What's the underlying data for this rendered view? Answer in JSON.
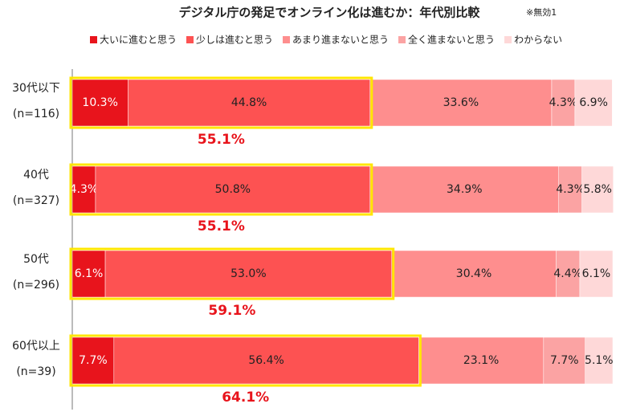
{
  "chart_data": {
    "type": "stacked_bar_horizontal",
    "title": "デジタル庁の発足でオンライン化は進むか：年代別比較",
    "note": "※無効1",
    "categories": [
      "30代以下",
      "40代",
      "50代",
      "60代以上"
    ],
    "sample_sizes": [
      "(n=116)",
      "(n=327)",
      "(n=296)",
      "(n=39)"
    ],
    "xlim": [
      0,
      100
    ],
    "series": [
      {
        "name": "大いに進むと思う",
        "color": "#e8141c",
        "values": [
          10.3,
          4.3,
          6.1,
          7.7
        ],
        "value_labels": [
          "10.3%",
          "4.3%",
          "6.1%",
          "7.7%"
        ]
      },
      {
        "name": "少しは進むと思う",
        "color": "#fd5252",
        "values": [
          44.8,
          50.8,
          53.0,
          56.4
        ],
        "value_labels": [
          "44.8%",
          "50.8%",
          "53.0%",
          "56.4%"
        ]
      },
      {
        "name": "あまり進まないと思う",
        "color": "#fe8e8e",
        "values": [
          33.6,
          34.9,
          30.4,
          23.1
        ],
        "value_labels": [
          "33.6%",
          "34.9%",
          "30.4%",
          "23.1%"
        ]
      },
      {
        "name": "全く進まないと思う",
        "color": "#fba3a3",
        "values": [
          4.3,
          4.3,
          4.4,
          7.7
        ],
        "value_labels": [
          "4.3%",
          "4.3%",
          "4.4%",
          "7.7%"
        ]
      },
      {
        "name": "わからない",
        "color": "#fed8d8",
        "values": [
          6.9,
          5.8,
          6.1,
          5.1
        ],
        "value_labels": [
          "6.9%",
          "5.8%",
          "6.1%",
          "5.1%"
        ]
      }
    ],
    "totals": [
      {
        "value": 55.1,
        "label": "55.1%"
      },
      {
        "value": 55.1,
        "label": "55.1%"
      },
      {
        "value": 59.1,
        "label": "59.1%"
      },
      {
        "value": 64.1,
        "label": "64.1%"
      }
    ],
    "highlight_color": "#ffe600"
  }
}
